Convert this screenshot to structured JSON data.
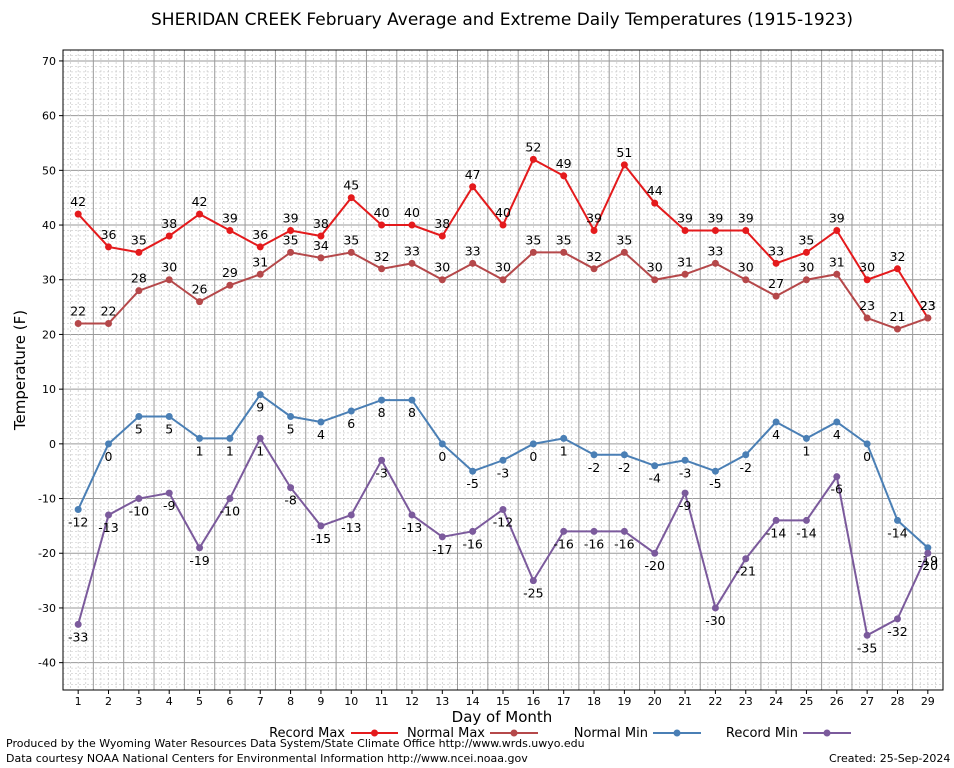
{
  "chart_data": {
    "type": "line",
    "title": "SHERIDAN CREEK February Average and Extreme Daily Temperatures (1915-1923)",
    "xlabel": "Day of Month",
    "ylabel": "Temperature (F)",
    "ylim": [
      -45,
      72
    ],
    "yticks": [
      -40,
      -30,
      -20,
      -10,
      0,
      10,
      20,
      30,
      40,
      50,
      60,
      70
    ],
    "grid": true,
    "legend_position": "bottom",
    "x": [
      1,
      2,
      3,
      4,
      5,
      6,
      7,
      8,
      9,
      10,
      11,
      12,
      13,
      14,
      15,
      16,
      17,
      18,
      19,
      20,
      21,
      22,
      23,
      24,
      25,
      26,
      27,
      28,
      29
    ],
    "series": [
      {
        "name": "Record Max",
        "color": "#e41a1c",
        "values": [
          42,
          36,
          35,
          38,
          42,
          39,
          36,
          39,
          38,
          45,
          40,
          40,
          38,
          47,
          40,
          52,
          49,
          39,
          51,
          44,
          39,
          39,
          39,
          33,
          35,
          39,
          30,
          32,
          23
        ]
      },
      {
        "name": "Normal Max",
        "color": "#b5484a",
        "values": [
          22,
          22,
          28,
          30,
          26,
          29,
          31,
          35,
          34,
          35,
          32,
          33,
          30,
          33,
          30,
          35,
          35,
          32,
          35,
          30,
          31,
          33,
          30,
          27,
          30,
          31,
          23,
          21,
          23
        ]
      },
      {
        "name": "Normal Min",
        "color": "#4a7fb5",
        "values": [
          -12,
          0,
          5,
          5,
          1,
          1,
          9,
          5,
          4,
          6,
          8,
          8,
          0,
          -5,
          -3,
          0,
          1,
          -2,
          -2,
          -4,
          -3,
          -5,
          -2,
          4,
          1,
          4,
          0,
          -14,
          -19
        ]
      },
      {
        "name": "Record Min",
        "color": "#7b5a9c",
        "values": [
          -33,
          -13,
          -10,
          -9,
          -19,
          -10,
          1,
          -8,
          -15,
          -13,
          -3,
          -13,
          -17,
          -16,
          -12,
          -25,
          -16,
          -16,
          -16,
          -20,
          -9,
          -30,
          -21,
          -14,
          -14,
          -6,
          -35,
          -32,
          -20
        ]
      }
    ]
  },
  "footer": {
    "produced_by": "Produced by the Wyoming Water Resources Data System/State Climate Office http://www.wrds.uwyo.edu",
    "courtesy": "Data courtesy NOAA National Centers for Environmental Information http://www.ncei.noaa.gov",
    "created": "Created: 25-Sep-2024"
  }
}
